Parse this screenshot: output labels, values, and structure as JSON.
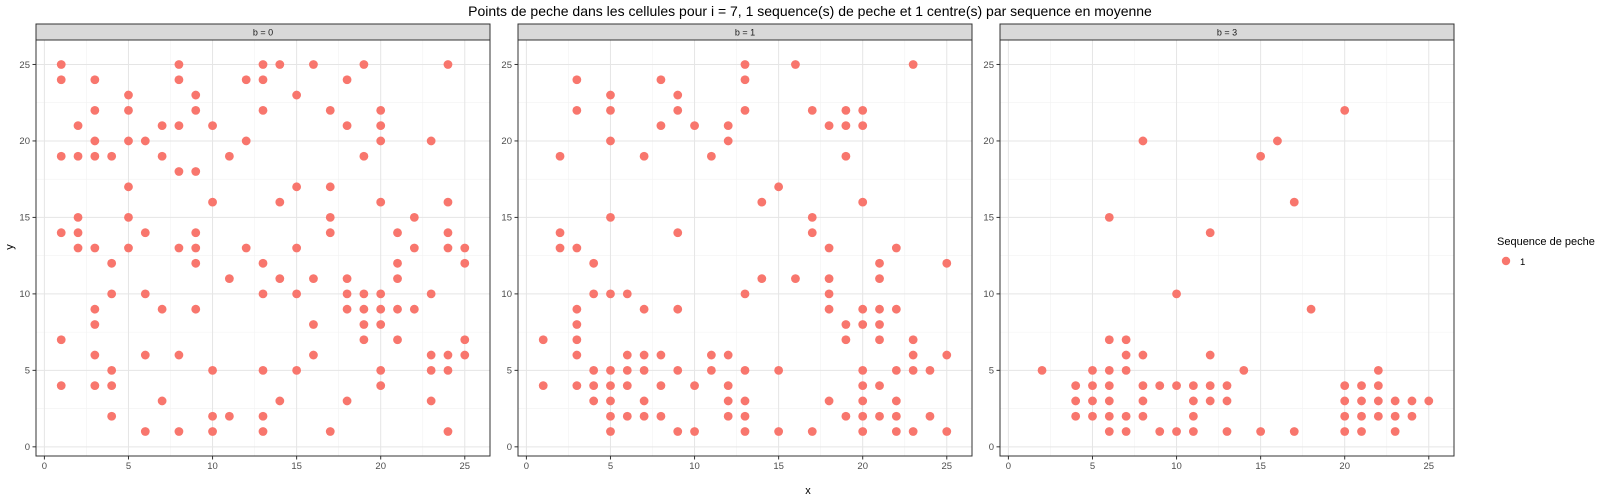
{
  "chart_data": {
    "type": "scatter",
    "title": "Points de peche dans les cellules pour i = 7, 1 sequence(s) de peche et 1 centre(s) par sequence en moyenne",
    "xlabel": "x",
    "ylabel": "y",
    "xlim": [
      -0.5,
      26.5
    ],
    "ylim": [
      -0.6,
      26.6
    ],
    "x_ticks": [
      0,
      5,
      10,
      15,
      20,
      25
    ],
    "y_ticks": [
      0,
      5,
      10,
      15,
      20,
      25
    ],
    "grid": true,
    "point_color": "#F8766D",
    "legend": {
      "title": "Sequence de peche",
      "entries": [
        "1"
      ],
      "position": "right"
    },
    "facets": [
      {
        "label": "b = 0",
        "points": [
          [
            1,
            25
          ],
          [
            1,
            24
          ],
          [
            1,
            19
          ],
          [
            1,
            14
          ],
          [
            1,
            7
          ],
          [
            1,
            4
          ],
          [
            2,
            21
          ],
          [
            2,
            19
          ],
          [
            2,
            15
          ],
          [
            2,
            14
          ],
          [
            2,
            13
          ],
          [
            3,
            24
          ],
          [
            3,
            22
          ],
          [
            3,
            20
          ],
          [
            3,
            19
          ],
          [
            3,
            13
          ],
          [
            3,
            9
          ],
          [
            3,
            8
          ],
          [
            3,
            6
          ],
          [
            3,
            4
          ],
          [
            4,
            19
          ],
          [
            4,
            12
          ],
          [
            4,
            10
          ],
          [
            4,
            5
          ],
          [
            4,
            4
          ],
          [
            4,
            2
          ],
          [
            5,
            23
          ],
          [
            5,
            22
          ],
          [
            5,
            20
          ],
          [
            5,
            17
          ],
          [
            5,
            15
          ],
          [
            5,
            13
          ],
          [
            6,
            20
          ],
          [
            6,
            14
          ],
          [
            6,
            10
          ],
          [
            6,
            6
          ],
          [
            6,
            1
          ],
          [
            7,
            21
          ],
          [
            7,
            19
          ],
          [
            7,
            9
          ],
          [
            7,
            3
          ],
          [
            8,
            25
          ],
          [
            8,
            24
          ],
          [
            8,
            21
          ],
          [
            8,
            18
          ],
          [
            8,
            13
          ],
          [
            8,
            6
          ],
          [
            8,
            1
          ],
          [
            9,
            23
          ],
          [
            9,
            22
          ],
          [
            9,
            18
          ],
          [
            9,
            14
          ],
          [
            9,
            13
          ],
          [
            9,
            12
          ],
          [
            9,
            9
          ],
          [
            10,
            21
          ],
          [
            10,
            16
          ],
          [
            10,
            5
          ],
          [
            10,
            2
          ],
          [
            10,
            1
          ],
          [
            11,
            19
          ],
          [
            11,
            11
          ],
          [
            11,
            2
          ],
          [
            12,
            24
          ],
          [
            12,
            20
          ],
          [
            12,
            13
          ],
          [
            13,
            25
          ],
          [
            13,
            24
          ],
          [
            13,
            22
          ],
          [
            13,
            12
          ],
          [
            13,
            10
          ],
          [
            13,
            5
          ],
          [
            13,
            2
          ],
          [
            13,
            1
          ],
          [
            14,
            25
          ],
          [
            14,
            16
          ],
          [
            14,
            11
          ],
          [
            14,
            3
          ],
          [
            15,
            23
          ],
          [
            15,
            17
          ],
          [
            15,
            13
          ],
          [
            15,
            10
          ],
          [
            15,
            5
          ],
          [
            16,
            25
          ],
          [
            16,
            11
          ],
          [
            16,
            8
          ],
          [
            16,
            6
          ],
          [
            17,
            22
          ],
          [
            17,
            17
          ],
          [
            17,
            15
          ],
          [
            17,
            14
          ],
          [
            17,
            1
          ],
          [
            18,
            24
          ],
          [
            18,
            21
          ],
          [
            18,
            11
          ],
          [
            18,
            10
          ],
          [
            18,
            9
          ],
          [
            18,
            3
          ],
          [
            19,
            25
          ],
          [
            19,
            19
          ],
          [
            19,
            10
          ],
          [
            19,
            9
          ],
          [
            19,
            8
          ],
          [
            19,
            7
          ],
          [
            20,
            22
          ],
          [
            20,
            21
          ],
          [
            20,
            20
          ],
          [
            20,
            16
          ],
          [
            20,
            10
          ],
          [
            20,
            9
          ],
          [
            20,
            8
          ],
          [
            20,
            5
          ],
          [
            20,
            4
          ],
          [
            21,
            14
          ],
          [
            21,
            12
          ],
          [
            21,
            11
          ],
          [
            21,
            9
          ],
          [
            21,
            7
          ],
          [
            22,
            15
          ],
          [
            22,
            13
          ],
          [
            22,
            9
          ],
          [
            23,
            20
          ],
          [
            23,
            10
          ],
          [
            23,
            6
          ],
          [
            23,
            5
          ],
          [
            23,
            3
          ],
          [
            24,
            25
          ],
          [
            24,
            16
          ],
          [
            24,
            14
          ],
          [
            24,
            13
          ],
          [
            24,
            6
          ],
          [
            24,
            5
          ],
          [
            24,
            1
          ],
          [
            25,
            13
          ],
          [
            25,
            12
          ],
          [
            25,
            7
          ],
          [
            25,
            6
          ]
        ]
      },
      {
        "label": "b = 1",
        "points": [
          [
            1,
            7
          ],
          [
            1,
            4
          ],
          [
            2,
            19
          ],
          [
            2,
            14
          ],
          [
            2,
            13
          ],
          [
            3,
            24
          ],
          [
            3,
            22
          ],
          [
            3,
            13
          ],
          [
            3,
            9
          ],
          [
            3,
            8
          ],
          [
            3,
            7
          ],
          [
            3,
            6
          ],
          [
            3,
            4
          ],
          [
            4,
            12
          ],
          [
            4,
            10
          ],
          [
            4,
            5
          ],
          [
            4,
            4
          ],
          [
            4,
            3
          ],
          [
            5,
            23
          ],
          [
            5,
            22
          ],
          [
            5,
            20
          ],
          [
            5,
            15
          ],
          [
            5,
            10
          ],
          [
            5,
            5
          ],
          [
            5,
            4
          ],
          [
            5,
            3
          ],
          [
            5,
            2
          ],
          [
            5,
            1
          ],
          [
            6,
            10
          ],
          [
            6,
            6
          ],
          [
            6,
            5
          ],
          [
            6,
            4
          ],
          [
            6,
            2
          ],
          [
            7,
            19
          ],
          [
            7,
            9
          ],
          [
            7,
            6
          ],
          [
            7,
            5
          ],
          [
            7,
            3
          ],
          [
            7,
            2
          ],
          [
            8,
            24
          ],
          [
            8,
            21
          ],
          [
            8,
            6
          ],
          [
            8,
            4
          ],
          [
            8,
            2
          ],
          [
            9,
            23
          ],
          [
            9,
            22
          ],
          [
            9,
            14
          ],
          [
            9,
            9
          ],
          [
            9,
            5
          ],
          [
            9,
            1
          ],
          [
            10,
            21
          ],
          [
            10,
            4
          ],
          [
            10,
            1
          ],
          [
            11,
            19
          ],
          [
            11,
            6
          ],
          [
            11,
            5
          ],
          [
            12,
            21
          ],
          [
            12,
            20
          ],
          [
            12,
            6
          ],
          [
            12,
            4
          ],
          [
            12,
            3
          ],
          [
            12,
            2
          ],
          [
            13,
            25
          ],
          [
            13,
            24
          ],
          [
            13,
            22
          ],
          [
            13,
            10
          ],
          [
            13,
            5
          ],
          [
            13,
            3
          ],
          [
            13,
            2
          ],
          [
            13,
            1
          ],
          [
            14,
            16
          ],
          [
            14,
            11
          ],
          [
            15,
            17
          ],
          [
            15,
            5
          ],
          [
            15,
            1
          ],
          [
            16,
            25
          ],
          [
            16,
            11
          ],
          [
            17,
            22
          ],
          [
            17,
            15
          ],
          [
            17,
            14
          ],
          [
            17,
            1
          ],
          [
            18,
            21
          ],
          [
            18,
            13
          ],
          [
            18,
            11
          ],
          [
            18,
            10
          ],
          [
            18,
            9
          ],
          [
            18,
            3
          ],
          [
            19,
            22
          ],
          [
            19,
            21
          ],
          [
            19,
            19
          ],
          [
            19,
            8
          ],
          [
            19,
            7
          ],
          [
            19,
            2
          ],
          [
            20,
            22
          ],
          [
            20,
            21
          ],
          [
            20,
            16
          ],
          [
            20,
            9
          ],
          [
            20,
            8
          ],
          [
            20,
            5
          ],
          [
            20,
            4
          ],
          [
            20,
            3
          ],
          [
            20,
            2
          ],
          [
            20,
            1
          ],
          [
            21,
            12
          ],
          [
            21,
            11
          ],
          [
            21,
            9
          ],
          [
            21,
            8
          ],
          [
            21,
            7
          ],
          [
            21,
            4
          ],
          [
            21,
            2
          ],
          [
            22,
            13
          ],
          [
            22,
            9
          ],
          [
            22,
            5
          ],
          [
            22,
            3
          ],
          [
            22,
            2
          ],
          [
            22,
            1
          ],
          [
            23,
            25
          ],
          [
            23,
            7
          ],
          [
            23,
            6
          ],
          [
            23,
            5
          ],
          [
            23,
            1
          ],
          [
            24,
            5
          ],
          [
            24,
            2
          ],
          [
            25,
            12
          ],
          [
            25,
            6
          ],
          [
            25,
            1
          ]
        ]
      },
      {
        "label": "b = 3",
        "points": [
          [
            2,
            5
          ],
          [
            4,
            4
          ],
          [
            4,
            3
          ],
          [
            4,
            2
          ],
          [
            5,
            5
          ],
          [
            5,
            4
          ],
          [
            5,
            3
          ],
          [
            5,
            2
          ],
          [
            6,
            15
          ],
          [
            6,
            7
          ],
          [
            6,
            5
          ],
          [
            6,
            4
          ],
          [
            6,
            3
          ],
          [
            6,
            2
          ],
          [
            6,
            1
          ],
          [
            7,
            7
          ],
          [
            7,
            6
          ],
          [
            7,
            5
          ],
          [
            7,
            2
          ],
          [
            7,
            1
          ],
          [
            8,
            20
          ],
          [
            8,
            6
          ],
          [
            8,
            4
          ],
          [
            8,
            3
          ],
          [
            8,
            2
          ],
          [
            9,
            4
          ],
          [
            9,
            1
          ],
          [
            10,
            10
          ],
          [
            10,
            4
          ],
          [
            10,
            1
          ],
          [
            11,
            4
          ],
          [
            11,
            3
          ],
          [
            11,
            2
          ],
          [
            11,
            1
          ],
          [
            12,
            14
          ],
          [
            12,
            6
          ],
          [
            12,
            4
          ],
          [
            12,
            3
          ],
          [
            13,
            4
          ],
          [
            13,
            3
          ],
          [
            13,
            1
          ],
          [
            14,
            5
          ],
          [
            15,
            19
          ],
          [
            15,
            1
          ],
          [
            16,
            20
          ],
          [
            17,
            16
          ],
          [
            17,
            1
          ],
          [
            18,
            9
          ],
          [
            20,
            22
          ],
          [
            20,
            4
          ],
          [
            20,
            3
          ],
          [
            20,
            2
          ],
          [
            20,
            1
          ],
          [
            21,
            4
          ],
          [
            21,
            3
          ],
          [
            21,
            2
          ],
          [
            21,
            1
          ],
          [
            22,
            5
          ],
          [
            22,
            4
          ],
          [
            22,
            3
          ],
          [
            22,
            2
          ],
          [
            23,
            3
          ],
          [
            23,
            2
          ],
          [
            23,
            1
          ],
          [
            24,
            3
          ],
          [
            24,
            2
          ],
          [
            25,
            3
          ]
        ]
      }
    ]
  }
}
